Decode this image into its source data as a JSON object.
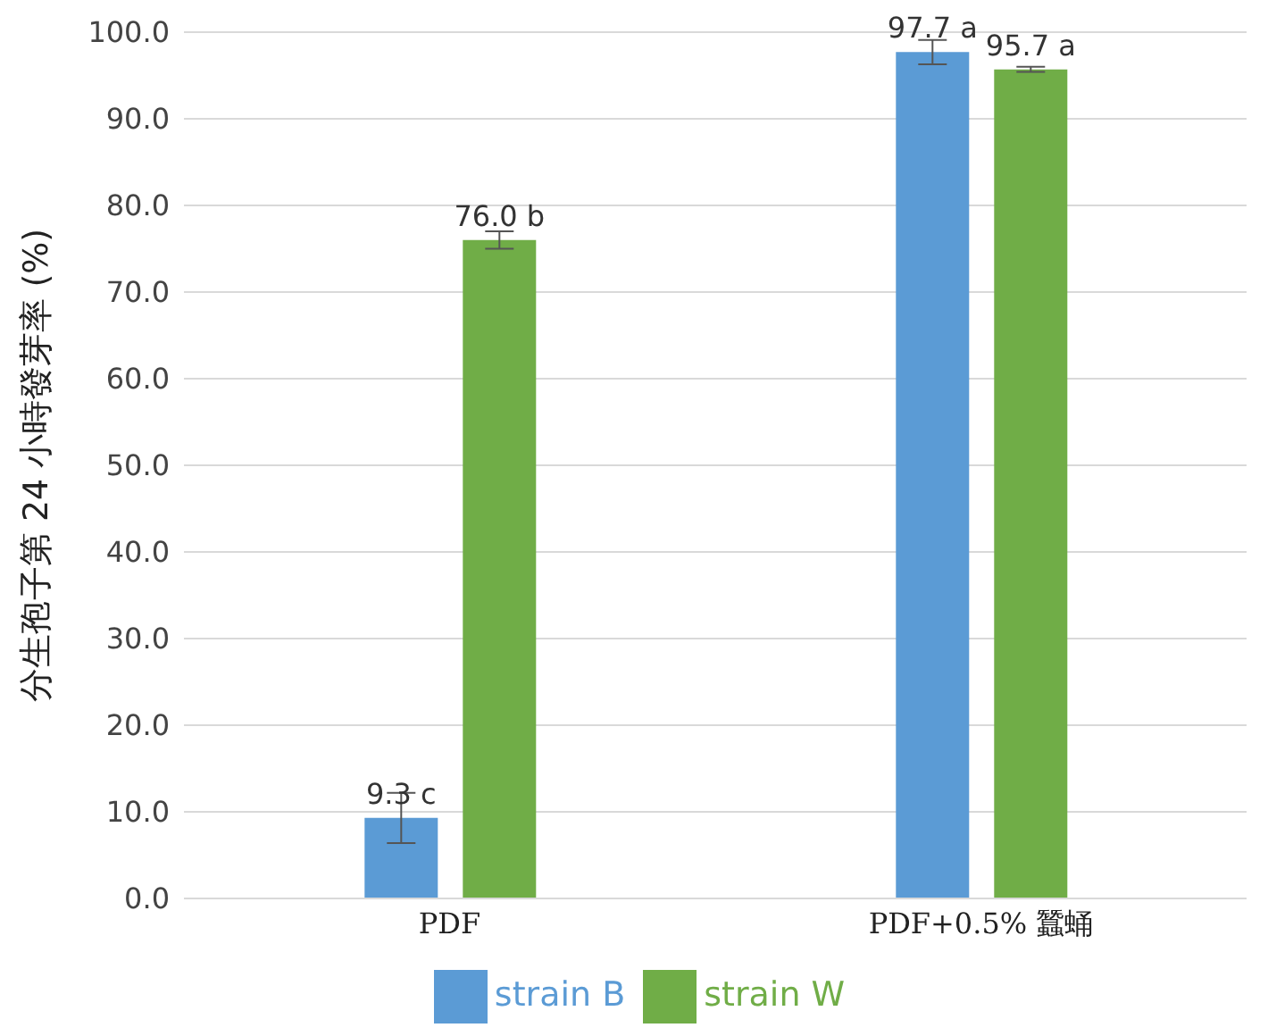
{
  "chart_data": {
    "type": "bar",
    "ylabel": "分生孢子第 24 小時發芽率 (%)",
    "categories": [
      "PDF",
      "PDF+0.5% 蠶蛹"
    ],
    "series": [
      {
        "name": "strain B",
        "color": "#5b9bd5",
        "values": [
          9.3,
          97.7
        ],
        "errors": [
          2.9,
          1.4
        ],
        "value_labels": [
          "9.3 c",
          "97.7 a"
        ]
      },
      {
        "name": "strain W",
        "color": "#70ad47",
        "values": [
          76.0,
          95.7
        ],
        "errors": [
          1.0,
          0.3
        ],
        "value_labels": [
          "76.0 b",
          "95.7 a"
        ]
      }
    ],
    "ylim": [
      0,
      100
    ],
    "yticks": [
      {
        "value": 0,
        "label": "0.0"
      },
      {
        "value": 10,
        "label": "10.0"
      },
      {
        "value": 20,
        "label": "20.0"
      },
      {
        "value": 30,
        "label": "30.0"
      },
      {
        "value": 40,
        "label": "40.0"
      },
      {
        "value": 50,
        "label": "50.0"
      },
      {
        "value": 60,
        "label": "60.0"
      },
      {
        "value": 70,
        "label": "70.0"
      },
      {
        "value": 80,
        "label": "80.0"
      },
      {
        "value": 90,
        "label": "90.0"
      },
      {
        "value": 100,
        "label": "100.0"
      }
    ],
    "grid": "y",
    "legend": "bottom"
  }
}
